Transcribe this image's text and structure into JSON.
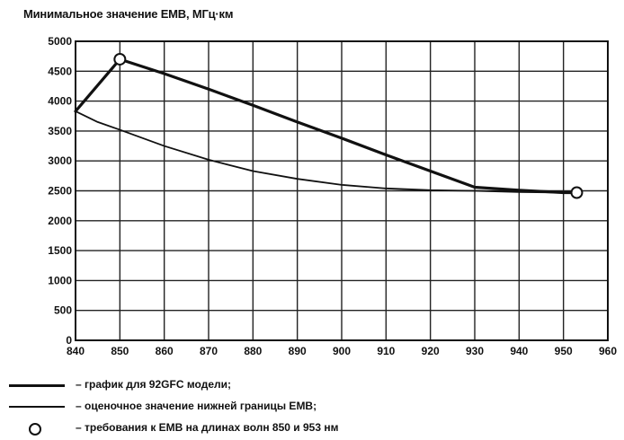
{
  "chart_data": {
    "type": "line",
    "title": "Минимальное значение EMB, МГц·км",
    "xlabel": "",
    "ylabel": "",
    "xlim": [
      840,
      960
    ],
    "ylim": [
      0,
      5000
    ],
    "x_ticks": [
      840,
      850,
      860,
      870,
      880,
      890,
      900,
      910,
      920,
      930,
      940,
      950,
      960
    ],
    "y_ticks": [
      0,
      500,
      1000,
      1500,
      2000,
      2500,
      3000,
      3500,
      4000,
      4500,
      5000
    ],
    "x_tick_labels": [
      "840",
      "850",
      "860",
      "870",
      "880",
      "890",
      "900",
      "910",
      "920",
      "930",
      "940",
      "950",
      "960"
    ],
    "y_tick_labels": [
      "0",
      "500",
      "1000",
      "1500",
      "2000",
      "2500",
      "3000",
      "3500",
      "4000",
      "4500",
      "5000"
    ],
    "grid": true,
    "series": [
      {
        "name": "график для 92GFC модели",
        "style": "thick",
        "x": [
          840,
          850,
          860,
          870,
          880,
          890,
          900,
          910,
          920,
          930,
          940,
          950,
          953
        ],
        "y": [
          3830,
          4700,
          4460,
          4200,
          3930,
          3650,
          3380,
          3100,
          2830,
          2560,
          2510,
          2470,
          2470
        ]
      },
      {
        "name": "оценочное значение нижней границы EMB",
        "style": "thin",
        "x": [
          840,
          845,
          850,
          860,
          870,
          880,
          890,
          900,
          910,
          920,
          930,
          940,
          950,
          953
        ],
        "y": [
          3830,
          3650,
          3520,
          3250,
          3020,
          2830,
          2700,
          2600,
          2540,
          2510,
          2500,
          2480,
          2470,
          2470
        ]
      }
    ],
    "markers": [
      {
        "name": "требования к EMB на длинах волн 850 и 953 нм",
        "x": 850,
        "y": 4700
      },
      {
        "name": "требования к EMB на длинах волн 850 и 953 нм",
        "x": 953,
        "y": 2470
      }
    ]
  },
  "legend": [
    {
      "kind": "thick-line",
      "label": "– график для 92GFC модели;"
    },
    {
      "kind": "thin-line",
      "label": "– оценочное значение нижней границы EMB;"
    },
    {
      "kind": "circle",
      "label": "– требования к EMB на длинах волн 850 и 953 нм"
    }
  ]
}
